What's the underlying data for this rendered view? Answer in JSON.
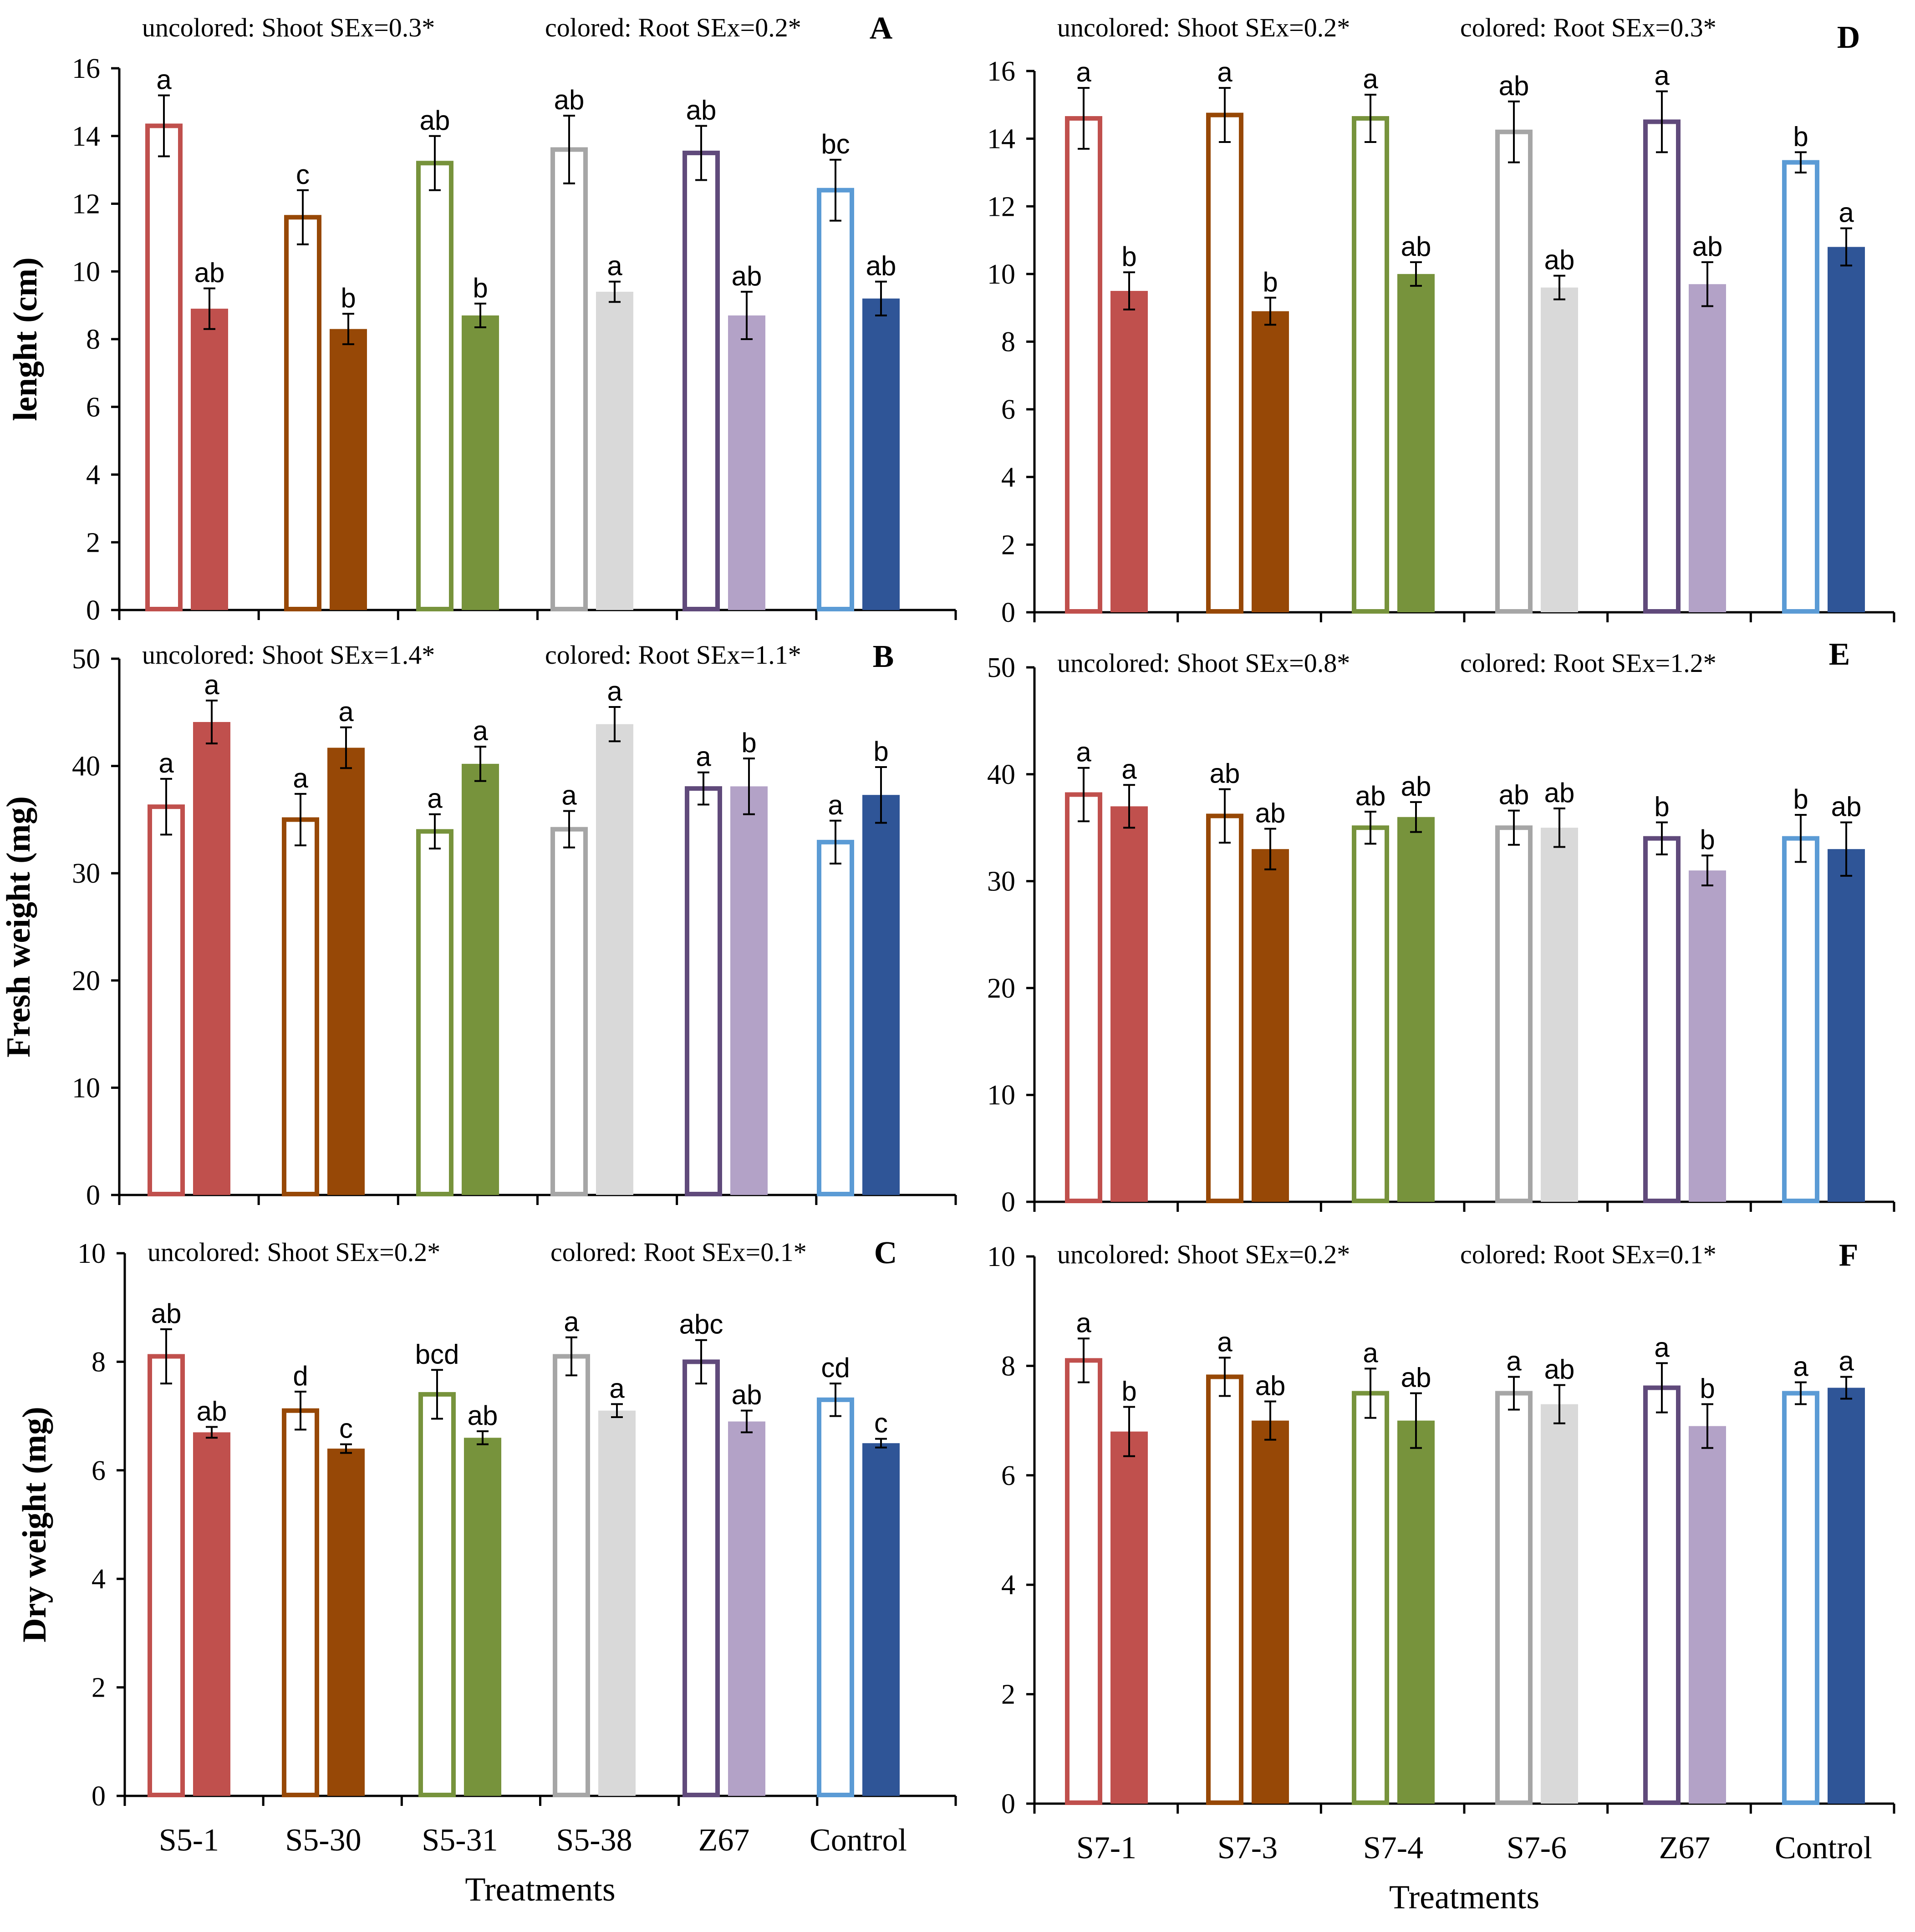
{
  "chart_data": [
    {
      "panel": "A",
      "type": "bar",
      "ylabel": "lenght (cm)",
      "xlabel": "",
      "ylim": [
        0,
        16
      ],
      "yticks": [
        "0",
        "2",
        "4",
        "6",
        "8",
        "10",
        "12",
        "14",
        "16"
      ],
      "categories": [
        "S5-1",
        "S5-30",
        "S5-31",
        "S5-38",
        "Z67",
        "Control"
      ],
      "shoot_note": "uncolored: Shoot SEx=0.3*",
      "root_note": "colored: Root SEx=0.2*",
      "series": [
        {
          "name": "Shoot",
          "style": "uncolored",
          "values": [
            14.3,
            11.6,
            13.2,
            13.6,
            13.5,
            12.4
          ],
          "errors": [
            0.9,
            0.8,
            0.8,
            1.0,
            0.8,
            0.9
          ],
          "letters": [
            "a",
            "c",
            "ab",
            "ab",
            "ab",
            "bc"
          ]
        },
        {
          "name": "Root",
          "style": "colored",
          "values": [
            8.9,
            8.3,
            8.7,
            9.4,
            8.7,
            9.2
          ],
          "errors": [
            0.6,
            0.45,
            0.35,
            0.3,
            0.7,
            0.5
          ],
          "letters": [
            "ab",
            "b",
            "b",
            "a",
            "ab",
            "ab"
          ]
        }
      ]
    },
    {
      "panel": "B",
      "type": "bar",
      "ylabel": "Fresh weight (mg)",
      "xlabel": "",
      "ylim": [
        0,
        50
      ],
      "yticks": [
        "0",
        "10",
        "20",
        "30",
        "40",
        "50"
      ],
      "categories": [
        "S5-1",
        "S5-30",
        "S5-31",
        "S5-38",
        "Z67",
        "Control"
      ],
      "shoot_note": "uncolored: Shoot SEx=1.4*",
      "root_note": "colored: Root SEx=1.1*",
      "series": [
        {
          "name": "Shoot",
          "style": "uncolored",
          "values": [
            36.2,
            35.0,
            33.9,
            34.1,
            37.9,
            32.9
          ],
          "errors": [
            2.6,
            2.4,
            1.6,
            1.7,
            1.5,
            2.0
          ],
          "letters": [
            "a",
            "a",
            "a",
            "a",
            "a",
            "a"
          ]
        },
        {
          "name": "Root",
          "style": "colored",
          "values": [
            44.1,
            41.7,
            40.2,
            43.9,
            38.1,
            37.3
          ],
          "errors": [
            2.0,
            1.9,
            1.6,
            1.6,
            2.6,
            2.6
          ],
          "letters": [
            "a",
            "a",
            "a",
            "a",
            "b",
            "b"
          ]
        }
      ]
    },
    {
      "panel": "C",
      "type": "bar",
      "ylabel": "Dry weight (mg)",
      "xlabel": "Treatments",
      "ylim": [
        0,
        10
      ],
      "yticks": [
        "0",
        "2",
        "4",
        "6",
        "8",
        "10"
      ],
      "categories": [
        "S5-1",
        "S5-30",
        "S5-31",
        "S5-38",
        "Z67",
        "Control"
      ],
      "shoot_note": "uncolored: Shoot SEx=0.2*",
      "root_note": "colored: Root SEx=0.1*",
      "series": [
        {
          "name": "Shoot",
          "style": "uncolored",
          "values": [
            8.1,
            7.1,
            7.4,
            8.1,
            8.0,
            7.3
          ],
          "errors": [
            0.5,
            0.35,
            0.45,
            0.35,
            0.4,
            0.3
          ],
          "letters": [
            "ab",
            "d",
            "bcd",
            "a",
            "abc",
            "cd"
          ]
        },
        {
          "name": "Root",
          "style": "colored",
          "values": [
            6.7,
            6.4,
            6.6,
            7.1,
            6.9,
            6.5
          ],
          "errors": [
            0.1,
            0.08,
            0.12,
            0.12,
            0.2,
            0.08
          ],
          "letters": [
            "ab",
            "c",
            "ab",
            "a",
            "ab",
            "c"
          ]
        }
      ]
    },
    {
      "panel": "D",
      "type": "bar",
      "ylabel": "",
      "xlabel": "",
      "ylim": [
        0,
        16
      ],
      "yticks": [
        "0",
        "2",
        "4",
        "6",
        "8",
        "10",
        "12",
        "14",
        "16"
      ],
      "categories": [
        "S7-1",
        "S7-3",
        "S7-4",
        "S7-6",
        "Z67",
        "Control"
      ],
      "shoot_note": "uncolored: Shoot SEx=0.2*",
      "root_note": "colored: Root SEx=0.3*",
      "series": [
        {
          "name": "Shoot",
          "style": "uncolored",
          "values": [
            14.6,
            14.7,
            14.6,
            14.2,
            14.5,
            13.3
          ],
          "errors": [
            0.9,
            0.8,
            0.7,
            0.9,
            0.9,
            0.3
          ],
          "letters": [
            "a",
            "a",
            "a",
            "ab",
            "a",
            "b"
          ]
        },
        {
          "name": "Root",
          "style": "colored",
          "values": [
            9.5,
            8.9,
            10.0,
            9.6,
            9.7,
            10.8
          ],
          "errors": [
            0.55,
            0.4,
            0.35,
            0.35,
            0.65,
            0.55
          ],
          "letters": [
            "b",
            "b",
            "ab",
            "ab",
            "ab",
            "a"
          ]
        }
      ]
    },
    {
      "panel": "E",
      "type": "bar",
      "ylabel": "",
      "xlabel": "",
      "ylim": [
        0,
        50
      ],
      "yticks": [
        "0",
        "10",
        "20",
        "30",
        "40",
        "50"
      ],
      "categories": [
        "S7-1",
        "S7-3",
        "S7-4",
        "S7-6",
        "Z67",
        "Control"
      ],
      "shoot_note": "uncolored: Shoot SEx=0.8*",
      "root_note": "colored: Root SEx=1.2*",
      "series": [
        {
          "name": "Shoot",
          "style": "uncolored",
          "values": [
            38.1,
            36.1,
            35.0,
            35.0,
            34.0,
            34.0
          ],
          "errors": [
            2.5,
            2.5,
            1.5,
            1.6,
            1.5,
            2.2
          ],
          "letters": [
            "a",
            "ab",
            "ab",
            "ab",
            "b",
            "b"
          ]
        },
        {
          "name": "Root",
          "style": "colored",
          "values": [
            37.0,
            33.0,
            36.0,
            35.0,
            31.0,
            33.0
          ],
          "errors": [
            2.0,
            1.9,
            1.4,
            1.8,
            1.4,
            2.5
          ],
          "letters": [
            "a",
            "ab",
            "ab",
            "ab",
            "b",
            "ab"
          ]
        }
      ]
    },
    {
      "panel": "F",
      "type": "bar",
      "ylabel": "",
      "xlabel": "Treatments",
      "ylim": [
        0,
        10
      ],
      "yticks": [
        "0",
        "2",
        "4",
        "6",
        "8",
        "10"
      ],
      "categories": [
        "S7-1",
        "S7-3",
        "S7-4",
        "S7-6",
        "Z67",
        "Control"
      ],
      "shoot_note": "uncolored: Shoot SEx=0.2*",
      "root_note": "colored: Root SEx=0.1*",
      "series": [
        {
          "name": "Shoot",
          "style": "uncolored",
          "values": [
            8.1,
            7.8,
            7.5,
            7.5,
            7.6,
            7.5
          ],
          "errors": [
            0.4,
            0.35,
            0.45,
            0.3,
            0.45,
            0.2
          ],
          "letters": [
            "a",
            "a",
            "a",
            "a",
            "a",
            "a"
          ]
        },
        {
          "name": "Root",
          "style": "colored",
          "values": [
            6.8,
            7.0,
            7.0,
            7.3,
            6.9,
            7.6
          ],
          "errors": [
            0.45,
            0.35,
            0.5,
            0.35,
            0.4,
            0.2
          ],
          "letters": [
            "b",
            "ab",
            "ab",
            "ab",
            "b",
            "a"
          ]
        }
      ]
    }
  ],
  "colors": {
    "series_palette": [
      "#c0504d",
      "#974806",
      "#77933c",
      "#d9d9d9",
      "#b3a2c7",
      "#2f5597"
    ],
    "outline_palette": [
      "#c0504d",
      "#974806",
      "#77933c",
      "#a6a6a6",
      "#604a7b",
      "#5b9bd5"
    ],
    "axis": "#000000",
    "background": "#ffffff"
  }
}
